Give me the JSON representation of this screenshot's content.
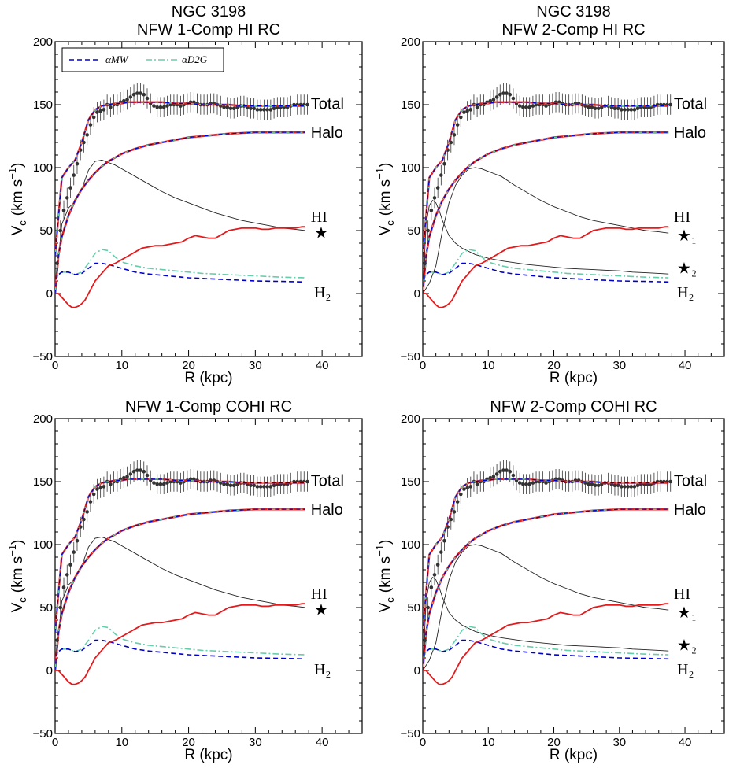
{
  "colors": {
    "total_halo": "#e41a1c",
    "mw": "#0000cc",
    "d2g": "#66cdaa",
    "data": "#333333",
    "stellar": "#222222",
    "hi": "#e41a1c"
  },
  "chart_data": [
    {
      "type": "line",
      "panel": "top-left",
      "title_lines": [
        "NGC 3198",
        "NFW 1-Comp HI RC"
      ],
      "xlabel": "R (kpc)",
      "ylabel_main": "V",
      "ylabel_sub": "c",
      "ylabel_units": "(km s",
      "ylabel_exp": "−1",
      "ylabel_close": ")",
      "xlim": [
        0,
        46
      ],
      "ylim": [
        -50,
        200
      ],
      "xticks": [
        0,
        10,
        20,
        30,
        40
      ],
      "yticks": [
        -50,
        0,
        50,
        100,
        150,
        200
      ],
      "legend": {
        "placement": "top-left",
        "entries": [
          "αMW",
          "αD2G"
        ]
      },
      "stellar_components": 1,
      "curve_labels": {
        "total": "Total",
        "halo": "Halo",
        "hi": "HI",
        "star": "★",
        "h2": "H₂"
      }
    },
    {
      "type": "line",
      "panel": "top-right",
      "title_lines": [
        "NGC 3198",
        "NFW 2-Comp HI RC"
      ],
      "xlabel": "R (kpc)",
      "ylabel_main": "V",
      "ylabel_sub": "c",
      "ylabel_units": "(km s",
      "ylabel_exp": "−1",
      "ylabel_close": ")",
      "xlim": [
        0,
        46
      ],
      "ylim": [
        -50,
        200
      ],
      "xticks": [
        0,
        10,
        20,
        30,
        40
      ],
      "yticks": [
        -50,
        0,
        50,
        100,
        150,
        200
      ],
      "stellar_components": 2,
      "curve_labels": {
        "total": "Total",
        "halo": "Halo",
        "hi": "HI",
        "star1": "★₁",
        "star2": "★₂",
        "h2": "H₂"
      }
    },
    {
      "type": "line",
      "panel": "bottom-left",
      "title_lines": [
        "NFW 1-Comp COHI RC"
      ],
      "xlabel": "R (kpc)",
      "ylabel_main": "V",
      "ylabel_sub": "c",
      "ylabel_units": "(km s",
      "ylabel_exp": "−1",
      "ylabel_close": ")",
      "xlim": [
        0,
        46
      ],
      "ylim": [
        -50,
        200
      ],
      "xticks": [
        0,
        10,
        20,
        30,
        40
      ],
      "yticks": [
        -50,
        0,
        50,
        100,
        150,
        200
      ],
      "stellar_components": 1,
      "curve_labels": {
        "total": "Total",
        "halo": "Halo",
        "hi": "HI",
        "star": "★",
        "h2": "H₂"
      }
    },
    {
      "type": "line",
      "panel": "bottom-right",
      "title_lines": [
        "NFW 2-Comp COHI RC"
      ],
      "xlabel": "R (kpc)",
      "ylabel_main": "V",
      "ylabel_sub": "c",
      "ylabel_units": "(km s",
      "ylabel_exp": "−1",
      "ylabel_close": ")",
      "xlim": [
        0,
        46
      ],
      "ylim": [
        -50,
        200
      ],
      "xticks": [
        0,
        10,
        20,
        30,
        40
      ],
      "yticks": [
        -50,
        0,
        50,
        100,
        150,
        200
      ],
      "stellar_components": 2,
      "curve_labels": {
        "total": "Total",
        "halo": "Halo",
        "hi": "HI",
        "star1": "★₁",
        "star2": "★₂",
        "h2": "H₂"
      }
    }
  ],
  "series": {
    "observed_rc": {
      "r": [
        0.3,
        0.8,
        1.3,
        1.8,
        2.3,
        2.8,
        3.3,
        3.8,
        4.3,
        4.8,
        5.3,
        5.8,
        6.3,
        6.8,
        7.3,
        7.8,
        8.3,
        8.8,
        9.3,
        9.8,
        10.3,
        10.8,
        11.3,
        11.8,
        12.3,
        12.8,
        13.3,
        13.8,
        14.3,
        14.8,
        15.3,
        15.8,
        16.3,
        16.8,
        17.3,
        17.8,
        18.3,
        18.8,
        19.3,
        19.8,
        20.3,
        20.8,
        21.3,
        21.8,
        22.3,
        22.8,
        23.3,
        23.8,
        24.3,
        24.8,
        25.3,
        25.8,
        26.3,
        26.8,
        27.3,
        27.8,
        28.3,
        28.8,
        29.3,
        29.8,
        30.3,
        30.8,
        31.3,
        31.8,
        32.3,
        32.8,
        33.3,
        33.8,
        34.3,
        34.8,
        35.3,
        35.8,
        36.3,
        36.8,
        37.3,
        37.8
      ],
      "v": [
        24,
        50,
        66,
        76,
        84,
        94,
        103,
        114,
        120,
        126,
        134,
        140,
        144,
        145,
        146,
        150,
        148,
        150,
        150,
        152,
        153,
        154,
        156,
        158,
        159,
        159,
        158,
        155,
        151,
        149,
        148,
        148,
        148,
        149,
        150,
        150,
        150,
        149,
        150,
        151,
        152,
        152,
        151,
        150,
        150,
        150,
        151,
        151,
        150,
        149,
        148,
        148,
        147,
        147,
        148,
        149,
        149,
        148,
        147,
        147,
        146,
        146,
        146,
        146,
        146,
        147,
        148,
        148,
        148,
        148,
        149,
        150,
        150,
        150,
        150,
        150
      ],
      "err": 8
    },
    "total_model": {
      "r": [
        0,
        1,
        2,
        3,
        4,
        5,
        6,
        7,
        8,
        9,
        10,
        11,
        12,
        13,
        14,
        16,
        18,
        20,
        22,
        24,
        26,
        28,
        30,
        32,
        34,
        36,
        37.5
      ],
      "v": [
        30,
        92,
        100,
        106,
        120,
        138,
        146,
        149,
        150,
        151,
        151,
        152,
        152,
        152,
        152,
        152,
        151,
        151,
        150,
        150,
        150,
        149,
        149,
        149,
        149,
        149,
        149
      ]
    },
    "halo": {
      "r": [
        0,
        0.5,
        1,
        2,
        3,
        4,
        5,
        6,
        7,
        8,
        9,
        10,
        12,
        14,
        16,
        18,
        20,
        22,
        24,
        26,
        28,
        30,
        32,
        34,
        36,
        37.5
      ],
      "v": [
        0,
        30,
        45,
        62,
        74,
        83,
        90,
        96,
        101,
        105,
        108,
        111,
        115,
        118,
        120,
        122,
        124,
        125,
        126,
        127,
        127.5,
        128,
        128,
        128,
        128,
        128
      ]
    },
    "stellar_1comp": {
      "r": [
        0,
        1,
        2,
        3,
        4,
        5,
        6,
        7,
        8,
        9,
        10,
        12,
        14,
        16,
        18,
        20,
        22,
        24,
        26,
        28,
        30,
        32,
        34,
        36,
        37.5
      ],
      "v": [
        0,
        55,
        68,
        73,
        83,
        98,
        105,
        106,
        104,
        102,
        99,
        93,
        87,
        81,
        76,
        72,
        68,
        64,
        61,
        58,
        56,
        54,
        52,
        51,
        50
      ]
    },
    "stellar_1comp_cohi": {
      "r": [
        0,
        1,
        2,
        3,
        4,
        5,
        6,
        7,
        8,
        9,
        10,
        12,
        14,
        16,
        18,
        20,
        22,
        24,
        26,
        28,
        30,
        32,
        34,
        36,
        37.5
      ],
      "v": [
        0,
        55,
        68,
        73,
        83,
        98,
        105,
        106,
        104,
        102,
        99,
        93,
        87,
        81,
        76,
        72,
        68,
        64,
        61,
        58,
        56,
        54,
        52,
        51,
        50
      ]
    },
    "stellar_2comp_disk": {
      "r": [
        0,
        1,
        2,
        3,
        4,
        5,
        6,
        7,
        8,
        9,
        10,
        11,
        12,
        14,
        16,
        18,
        20,
        22,
        24,
        26,
        28,
        30,
        32,
        34,
        36,
        37.5
      ],
      "v": [
        0,
        8,
        22,
        50,
        72,
        86,
        94,
        99,
        100,
        99,
        97,
        95,
        93,
        86,
        80,
        74,
        69,
        65,
        61,
        58,
        56,
        54,
        52,
        50,
        49,
        48
      ]
    },
    "stellar_2comp_bulge": {
      "r": [
        0,
        0.5,
        1,
        1.5,
        2,
        2.5,
        3,
        4,
        5,
        6,
        8,
        10,
        12,
        14,
        16,
        18,
        20,
        22,
        24,
        26,
        28,
        30,
        32,
        34,
        36,
        37.5
      ],
      "v": [
        0,
        55,
        70,
        74,
        72,
        66,
        58,
        46,
        40,
        36,
        31,
        28,
        26,
        24.5,
        23,
        22,
        21,
        20,
        19.5,
        19,
        18.5,
        18,
        17,
        16.5,
        16,
        15.5
      ]
    },
    "h2_mw": {
      "r": [
        0,
        0.5,
        1,
        2,
        3,
        4,
        5,
        6,
        7,
        8,
        10,
        12,
        14,
        16,
        18,
        20,
        22,
        24,
        26,
        28,
        30,
        32,
        34,
        36,
        37.5
      ],
      "v": [
        10,
        15,
        17,
        17,
        15,
        16,
        20,
        24,
        24,
        23,
        20,
        17,
        15.5,
        14.5,
        13.5,
        12.5,
        12,
        11.5,
        11,
        10.5,
        10,
        9.8,
        9.6,
        9.4,
        9.2
      ]
    },
    "h2_d2g": {
      "r": [
        0,
        0.5,
        1,
        2,
        3,
        4,
        5,
        6,
        7,
        8,
        9,
        10,
        12,
        14,
        16,
        18,
        20,
        22,
        24,
        26,
        28,
        30,
        32,
        34,
        36,
        37.5
      ],
      "v": [
        10,
        15,
        17,
        17,
        15,
        17,
        24,
        32,
        35,
        34,
        29,
        25,
        22,
        20,
        19,
        18,
        17,
        16,
        15.5,
        15,
        14.5,
        14,
        13.5,
        13,
        12.7,
        12.5
      ]
    },
    "hi": {
      "r": [
        0,
        0.5,
        1,
        1.5,
        2,
        2.5,
        3,
        3.5,
        4,
        4.5,
        5,
        6,
        7,
        8,
        9,
        10,
        11,
        12,
        13,
        14,
        15,
        16,
        17,
        18,
        19,
        20,
        21,
        22,
        23,
        24,
        25,
        26,
        27,
        28,
        29,
        30,
        31,
        32,
        33,
        34,
        35,
        36,
        37,
        37.5
      ],
      "v": [
        0,
        0,
        -3,
        -6,
        -9,
        -11,
        -11,
        -10,
        -8,
        -5,
        0,
        10,
        16,
        22,
        24,
        27,
        30,
        33,
        36,
        37,
        38,
        38,
        39,
        40,
        41,
        44,
        46,
        45,
        44,
        44,
        47,
        50,
        51,
        52,
        52,
        52,
        51,
        51,
        52,
        52,
        52,
        52,
        53,
        53
      ]
    }
  }
}
